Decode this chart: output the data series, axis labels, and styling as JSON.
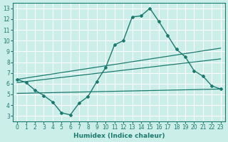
{
  "xlabel": "Humidex (Indice chaleur)",
  "ylabel": "",
  "bg_color": "#cceee8",
  "grid_color": "#ffffff",
  "line_color": "#1a7a6e",
  "xlim": [
    -0.5,
    23.5
  ],
  "ylim": [
    2.5,
    13.5
  ],
  "xticks": [
    0,
    1,
    2,
    3,
    4,
    5,
    6,
    7,
    8,
    9,
    10,
    11,
    12,
    13,
    14,
    15,
    16,
    17,
    18,
    19,
    20,
    21,
    22,
    23
  ],
  "yticks": [
    3,
    4,
    5,
    6,
    7,
    8,
    9,
    10,
    11,
    12,
    13
  ],
  "main_x": [
    0,
    1,
    2,
    3,
    4,
    5,
    6,
    7,
    8,
    9,
    10,
    11,
    12,
    13,
    14,
    15,
    16,
    17,
    18,
    19,
    20,
    21,
    22,
    23
  ],
  "main_y": [
    6.4,
    6.1,
    5.4,
    4.9,
    4.3,
    3.3,
    3.1,
    4.2,
    4.8,
    6.2,
    7.5,
    9.6,
    10.0,
    12.2,
    12.3,
    13.0,
    11.8,
    10.5,
    9.2,
    8.5,
    7.2,
    6.7,
    5.8,
    5.5
  ],
  "line1_x": [
    0,
    23
  ],
  "line1_y": [
    6.1,
    8.3
  ],
  "line2_x": [
    0,
    23
  ],
  "line2_y": [
    6.4,
    9.3
  ],
  "line3_x": [
    0,
    23
  ],
  "line3_y": [
    5.1,
    5.5
  ]
}
